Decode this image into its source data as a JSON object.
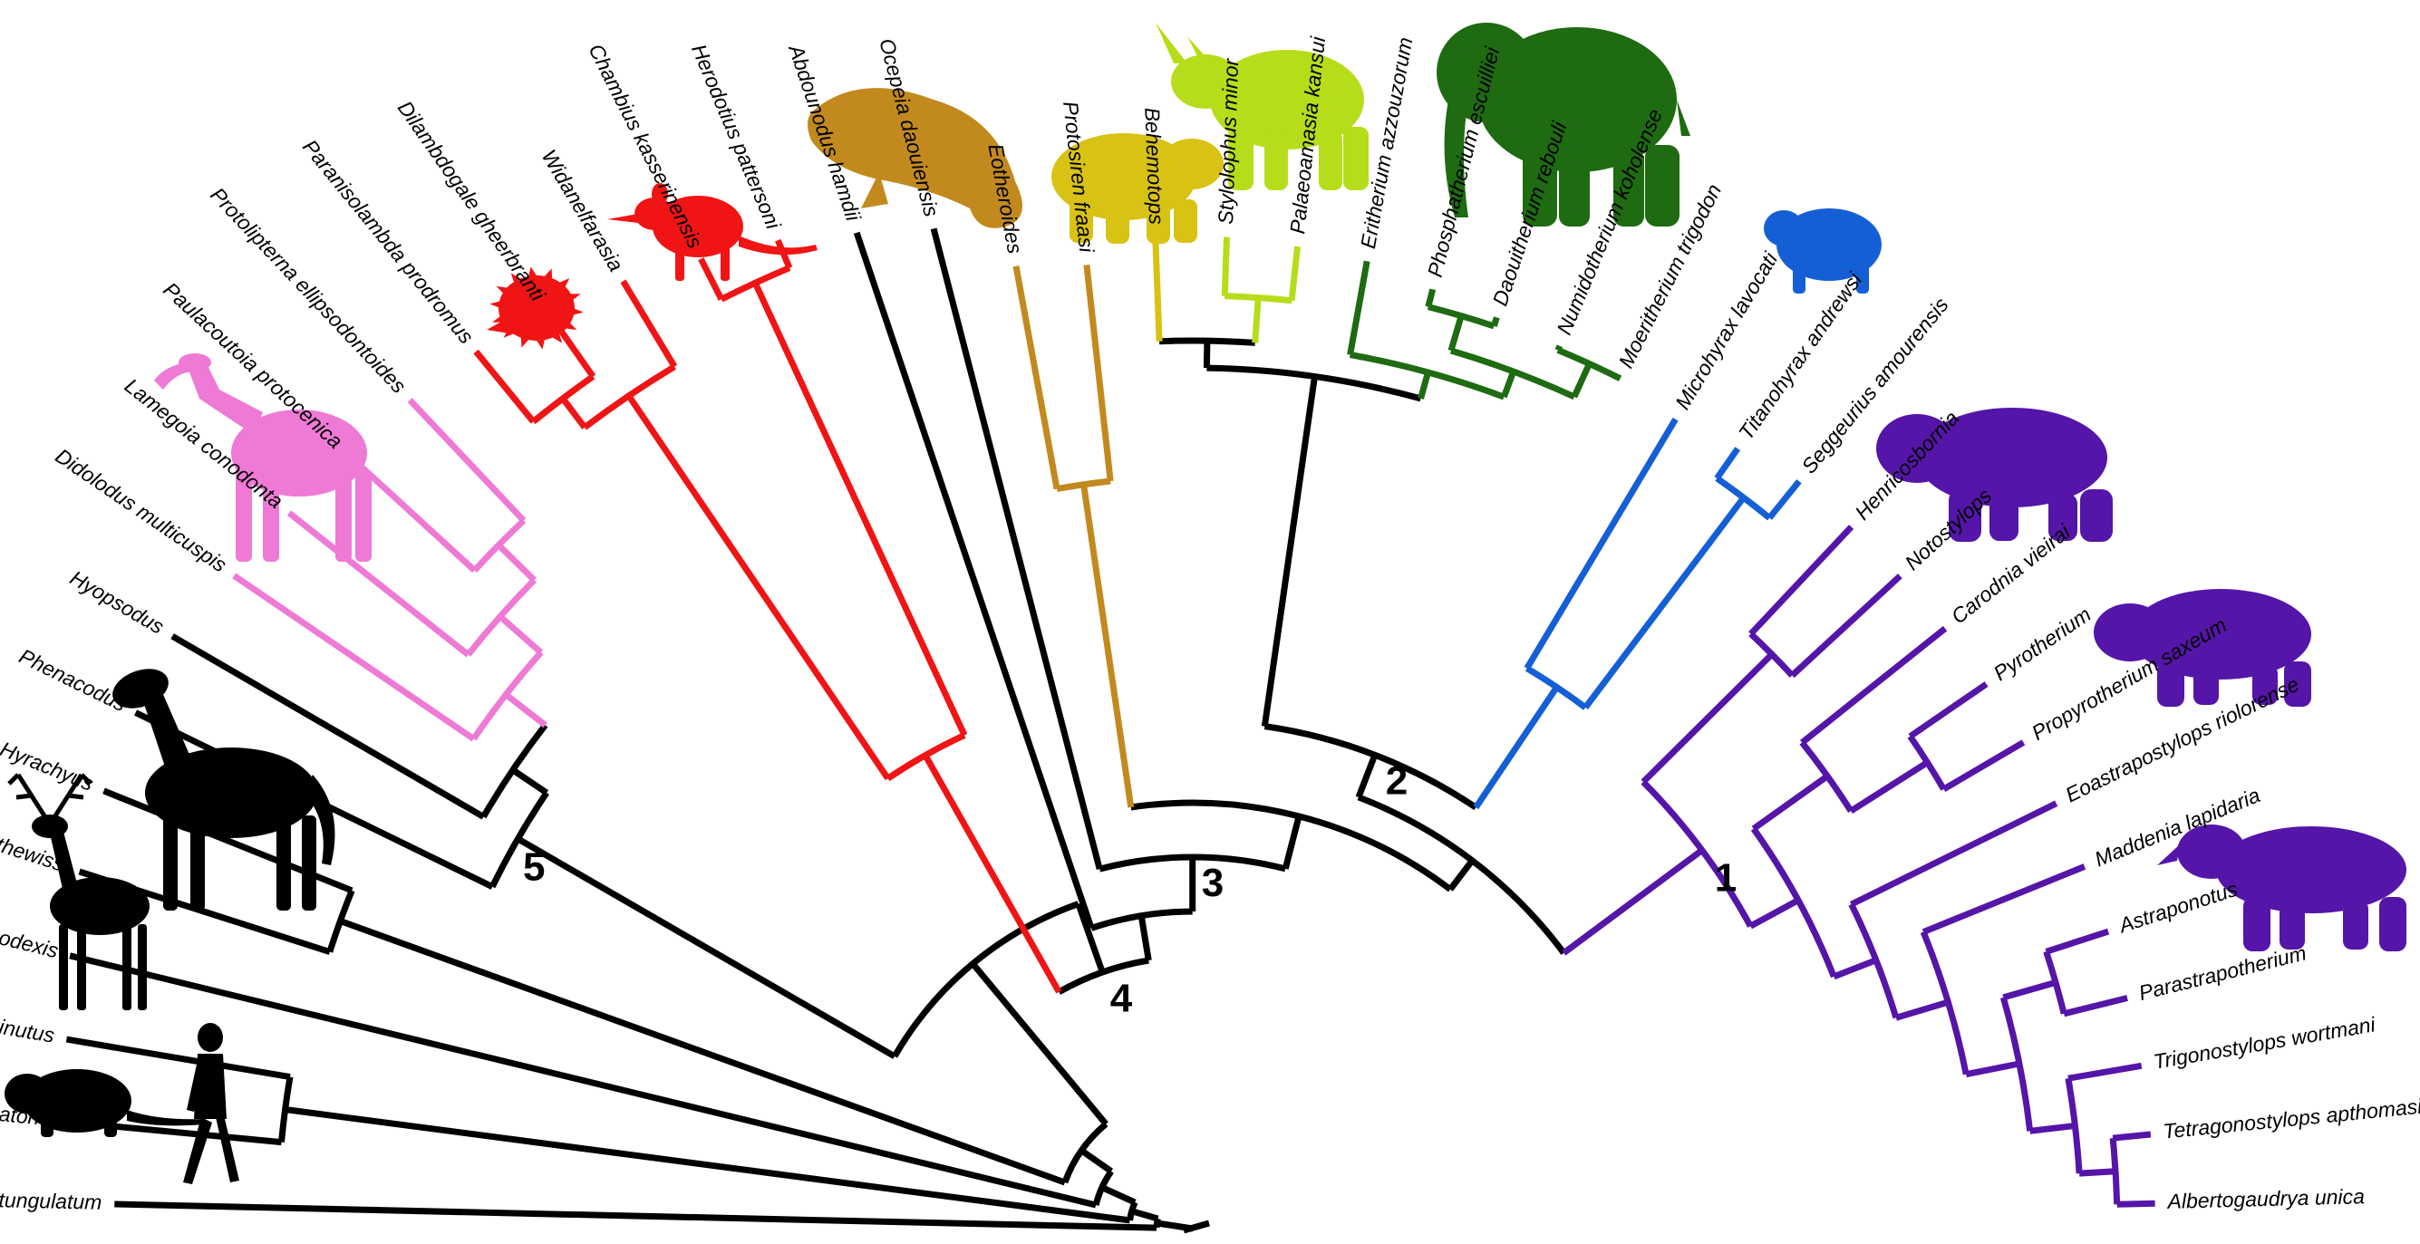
{
  "figure": {
    "colors": {
      "black": "#000000",
      "pink": "#ee7ad6",
      "red": "#f01414",
      "brown": "#c28a1e",
      "gold": "#d8c213",
      "lime": "#b6dd19",
      "green": "#1e6b12",
      "blue": "#155fd6",
      "purple": "#5515a8"
    },
    "node_labels": [
      "1",
      "2",
      "3",
      "4",
      "5"
    ],
    "silhouettes": [
      {
        "icon": "macrauchenia-icon",
        "color": "#ee7ad6"
      },
      {
        "icon": "hedgehog-tenrec-icon",
        "color": "#f01414"
      },
      {
        "icon": "elephant-shrew-icon",
        "color": "#f01414"
      },
      {
        "icon": "manatee-icon",
        "color": "#c28a1e"
      },
      {
        "icon": "hippo-like-icon",
        "color": "#d8c213"
      },
      {
        "icon": "arsinoitherium-icon",
        "color": "#b6dd19"
      },
      {
        "icon": "elephant-icon",
        "color": "#1e6b12"
      },
      {
        "icon": "hyrax-icon",
        "color": "#155fd6"
      },
      {
        "icon": "pyrotherium-icon",
        "color": "#5515a8"
      },
      {
        "icon": "toxodon-icon",
        "color": "#5515a8"
      },
      {
        "icon": "astrapothere-icon",
        "color": "#5515a8"
      },
      {
        "icon": "horse-icon",
        "color": "#000000"
      },
      {
        "icon": "deer-icon",
        "color": "#000000"
      },
      {
        "icon": "rodent-icon",
        "color": "#000000"
      },
      {
        "icon": "human-icon",
        "color": "#000000"
      }
    ]
  },
  "taxa": [
    "Protungulatum",
    "Purgatorius",
    "Tribosphenomys minutus",
    "Diacodexis",
    "Cambaytherium thewissi",
    "Hyrachyus",
    "Phenacodus",
    "Hyopsodus",
    "Didolodus multicuspis",
    "Lamegoia conodonta",
    "Paulacoutoia protocenica",
    "Protolipterna ellipsodontoides",
    "Paranisolambda prodromus",
    "Dilambdogale gheerbranti",
    "Widanelfarasia",
    "Chambius kasserinensis",
    "Herodotius pattersoni",
    "Abdounodus hamdii",
    "Ocepeia daouiensis",
    "Eotheroides",
    "Protosiren fraasi",
    "Behemotops",
    "Stylolophus minor",
    "Palaeoamasia kansui",
    "Eritherium azzouzorum",
    "Phosphatherium escuilliei",
    "Daouitherium rebouli",
    "Numidotherium koholense",
    "Moeritherium trigodon",
    "Microhyrax lavocati",
    "Titanohyrax andrewsi",
    "Seggeurius amourensis",
    "Henricosbornia",
    "Notostylops",
    "Carodnia vieirai",
    "Pyrotherium",
    "Propyrotherium saxeum",
    "Eoastrapostylops riolorense",
    "Maddenia lapidaria",
    "Astraponotus",
    "Parastrapotherium",
    "Trigonostylops wortmani",
    "Tetragonostylops apthomasi",
    "Albertogaudrya unica"
  ]
}
